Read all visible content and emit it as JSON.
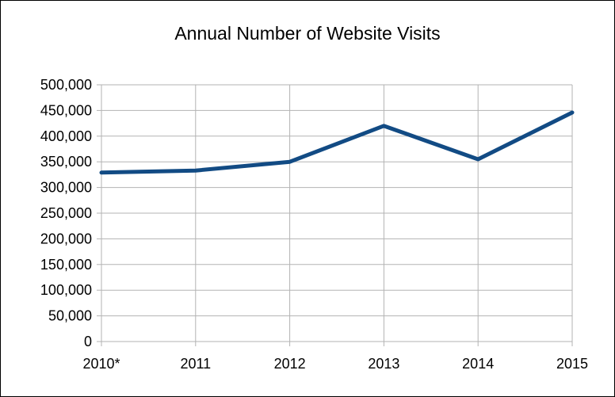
{
  "chart_data": {
    "type": "line",
    "title": "Annual Number of Website Visits",
    "categories": [
      "2010*",
      "2011",
      "2012",
      "2013",
      "2014",
      "2015"
    ],
    "series": [
      {
        "values": [
          329000,
          333000,
          350000,
          420000,
          355000,
          446000
        ],
        "color": "#124b84"
      }
    ],
    "ylim": [
      0,
      500000
    ],
    "yticks": [
      0,
      50000,
      100000,
      150000,
      200000,
      250000,
      300000,
      350000,
      400000,
      450000,
      500000
    ],
    "ytick_labels": [
      "0",
      "50,000",
      "100,000",
      "150,000",
      "200,000",
      "250,000",
      "300,000",
      "350,000",
      "400,000",
      "450,000",
      "500,000"
    ],
    "grid": true,
    "gridline_color": "#b3b3b3",
    "legend": "none"
  }
}
